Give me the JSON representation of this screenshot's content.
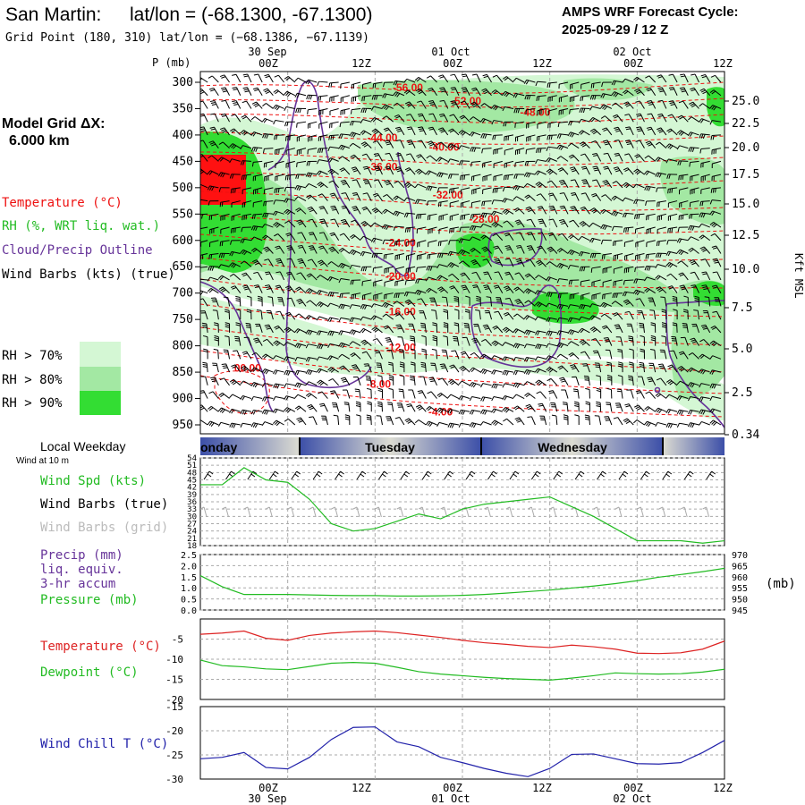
{
  "header": {
    "station": "San Martin:",
    "latlon": "lat/lon = (-68.1300, -67.1300)",
    "gridpoint": "Grid Point (180, 310) lat/lon = (−68.1386, −67.1139)",
    "cycle_line1": "AMPS WRF Forecast Cycle:",
    "cycle_line2": "2025-09-29 / 12  Z"
  },
  "time_axis": {
    "top_dates": [
      "30 Sep",
      "01 Oct",
      "02 Oct"
    ],
    "bottom_dates": [
      "30 Sep",
      "01 Oct",
      "02 Oct"
    ],
    "tick_labels": [
      "00Z",
      "12Z",
      "00Z",
      "12Z",
      "00Z",
      "12Z"
    ],
    "tick_hours": [
      12,
      24,
      36,
      48,
      60,
      72
    ],
    "hour_start": 0,
    "hour_end": 72
  },
  "left_legend": {
    "grid_title": "Model Grid ΔX:",
    "grid_value": "6.000 km",
    "temperature": "Temperature (°C)",
    "rh": "RH (%, WRT liq. wat.)",
    "cloud": "Cloud/Precip Outline",
    "wind_barbs": "Wind Barbs (kts) (true)",
    "rh70": "RH > 70%",
    "rh80": "RH > 80%",
    "rh90": "RH > 90%",
    "rh70_color": "#d4f7d4",
    "rh80_color": "#a3e8a3",
    "rh90_color": "#33dd33"
  },
  "chart_data": [
    {
      "name": "cross-section",
      "type": "heatmap",
      "ylabel": "P (mb)",
      "right_label": "Kft MSL",
      "pressure_ticks": [
        "300",
        "350",
        "400",
        "450",
        "500",
        "550",
        "600",
        "650",
        "700",
        "750",
        "800",
        "850",
        "900",
        "950"
      ],
      "height_ticks": [
        "25.0",
        "22.5",
        "20.0",
        "17.5",
        "15.0",
        "12.5",
        "10.0",
        "7.5",
        "5.0",
        "2.5",
        "0.34"
      ],
      "temperature_contours": [
        {
          "label": "-56.00",
          "hour": 28.5,
          "p": 310
        },
        {
          "label": "-52.00",
          "hour": 36.5,
          "p": 336
        },
        {
          "label": "-48.00",
          "hour": 46.0,
          "p": 357
        },
        {
          "label": "-44.00",
          "hour": 25.0,
          "p": 405
        },
        {
          "label": "-40.00",
          "hour": 33.5,
          "p": 423
        },
        {
          "label": "-36.00",
          "hour": 25.0,
          "p": 460
        },
        {
          "label": "-32.00",
          "hour": 34.0,
          "p": 514
        },
        {
          "label": "-28.00",
          "hour": 39.0,
          "p": 560
        },
        {
          "label": "-24.00",
          "hour": 27.5,
          "p": 605
        },
        {
          "label": "-20.00",
          "hour": 27.5,
          "p": 668
        },
        {
          "label": "-16.00",
          "hour": 27.5,
          "p": 735
        },
        {
          "label": "-12.00",
          "hour": 27.5,
          "p": 803
        },
        {
          "label": "-8.00",
          "hour": 24.5,
          "p": 873
        },
        {
          "label": "-4.00",
          "hour": 33.0,
          "p": 925
        },
        {
          "label": "00.00",
          "hour": 6.5,
          "p": 842
        }
      ]
    },
    {
      "name": "wind-speed",
      "type": "line",
      "yticks": [
        "54",
        "51",
        "48",
        "45",
        "42",
        "39",
        "36",
        "33",
        "30",
        "27",
        "24",
        "21",
        "18"
      ],
      "ylim": [
        18,
        54
      ],
      "series": [
        {
          "name": "Wind Spd (kts)",
          "color": "#22bb22",
          "x": [
            0,
            3,
            6,
            9,
            12,
            15,
            18,
            21,
            24,
            27,
            30,
            33,
            36,
            39,
            42,
            45,
            48,
            51,
            54,
            57,
            60,
            63,
            66,
            69,
            72
          ],
          "values": [
            43,
            43,
            50,
            45,
            44,
            37,
            27,
            24,
            25,
            28,
            31,
            29,
            33,
            35,
            36,
            37,
            38,
            34,
            30,
            25,
            20,
            20,
            20,
            19,
            20
          ]
        }
      ]
    },
    {
      "name": "precip-pressure",
      "type": "line",
      "yticks_left": [
        "2.5",
        "2.0",
        "1.5",
        "1.0",
        "0.5",
        "0.0"
      ],
      "yticks_right": [
        "970",
        "965",
        "960",
        "955",
        "950",
        "945"
      ],
      "left_label": "(mb)",
      "ylim_left": [
        0,
        2.5
      ],
      "ylim_right": [
        945,
        970
      ],
      "series": [
        {
          "name": "Pressure (mb)",
          "color": "#22bb22",
          "x": [
            0,
            3,
            6,
            9,
            12,
            15,
            18,
            21,
            24,
            27,
            30,
            33,
            36,
            39,
            42,
            45,
            48,
            51,
            54,
            57,
            60,
            63,
            66,
            69,
            72
          ],
          "values": [
            960.5,
            955.5,
            952.0,
            952.0,
            952.0,
            951.8,
            951.6,
            951.5,
            951.5,
            951.3,
            951.3,
            951.4,
            951.6,
            952.0,
            952.6,
            953.3,
            954.0,
            954.9,
            955.8,
            956.9,
            958.2,
            959.8,
            961.0,
            962.3,
            963.8
          ]
        }
      ]
    },
    {
      "name": "temperature-dewpoint",
      "type": "line",
      "yticks": [
        "-5",
        "-10",
        "-15",
        "-20"
      ],
      "ylim": [
        -20,
        0
      ],
      "series": [
        {
          "name": "Temperature (°C)",
          "color": "#dd2222",
          "x": [
            0,
            3,
            6,
            9,
            12,
            15,
            18,
            21,
            24,
            27,
            30,
            33,
            36,
            39,
            42,
            45,
            48,
            51,
            54,
            57,
            60,
            63,
            66,
            69,
            72
          ],
          "values": [
            -3.8,
            -3.5,
            -3.0,
            -4.8,
            -5.3,
            -4.1,
            -3.5,
            -3.2,
            -3.0,
            -3.4,
            -4.0,
            -4.6,
            -5.3,
            -5.9,
            -6.3,
            -6.8,
            -7.1,
            -6.5,
            -6.9,
            -7.5,
            -8.5,
            -8.6,
            -8.4,
            -7.5,
            -5.5
          ]
        },
        {
          "name": "Dewpoint (°C)",
          "color": "#22bb22",
          "x": [
            0,
            3,
            6,
            9,
            12,
            15,
            18,
            21,
            24,
            27,
            30,
            33,
            36,
            39,
            42,
            45,
            48,
            51,
            54,
            57,
            60,
            63,
            66,
            69,
            72
          ],
          "values": [
            -10.2,
            -11.6,
            -11.9,
            -12.4,
            -12.6,
            -11.8,
            -11.0,
            -10.8,
            -11.0,
            -12.0,
            -13.1,
            -13.7,
            -14.1,
            -14.5,
            -14.8,
            -15.0,
            -15.2,
            -14.7,
            -14.1,
            -13.4,
            -13.6,
            -13.7,
            -13.6,
            -13.2,
            -12.5
          ]
        }
      ]
    },
    {
      "name": "wind-chill",
      "type": "line",
      "yticks": [
        "-15",
        "-20",
        "-25",
        "-30"
      ],
      "ylim": [
        -30,
        -15
      ],
      "series": [
        {
          "name": "Wind Chill T (°C)",
          "color": "#2222aa",
          "x": [
            0,
            3,
            6,
            9,
            12,
            15,
            18,
            21,
            24,
            27,
            30,
            33,
            36,
            39,
            42,
            45,
            48,
            51,
            54,
            57,
            60,
            63,
            66,
            69,
            72
          ],
          "values": [
            -25.8,
            -25.5,
            -24.5,
            -27.6,
            -27.9,
            -25.5,
            -21.8,
            -19.3,
            -19.2,
            -22.3,
            -23.3,
            -25.5,
            -26.6,
            -27.8,
            -28.8,
            -29.5,
            -27.8,
            -24.9,
            -24.8,
            -25.8,
            -26.8,
            -26.9,
            -26.6,
            -24.5,
            -22.0
          ]
        }
      ]
    }
  ],
  "weekday_strip": {
    "title": "Local Weekday",
    "subtitle": "Wind at 10 m",
    "days": [
      "Monday",
      "Tuesday",
      "Wednesday"
    ],
    "visible_day_fragments": [
      "onday",
      "Tuesday",
      "Wednesday"
    ],
    "day_boundary_hours": [
      9,
      33,
      57
    ]
  },
  "panel_labels": {
    "wind_spd": "Wind Spd (kts)",
    "wind_barbs_true": "Wind Barbs (true)",
    "wind_barbs_grid": "Wind Barbs (grid)",
    "precip": "Precip (mm)",
    "liq": "liq. equiv.",
    "accum": "3-hr accum",
    "pressure": "Pressure (mb)",
    "temperature": "Temperature (°C)",
    "dewpoint": "Dewpoint (°C)",
    "wind_chill": "Wind Chill T (°C)"
  },
  "colors": {
    "temperature_contour": "#ee1111",
    "cloud_outline": "#663399",
    "grid_line": "#aaaaaa",
    "strip_dark": "#4a5aaa",
    "strip_light": "#e8e8d8"
  }
}
